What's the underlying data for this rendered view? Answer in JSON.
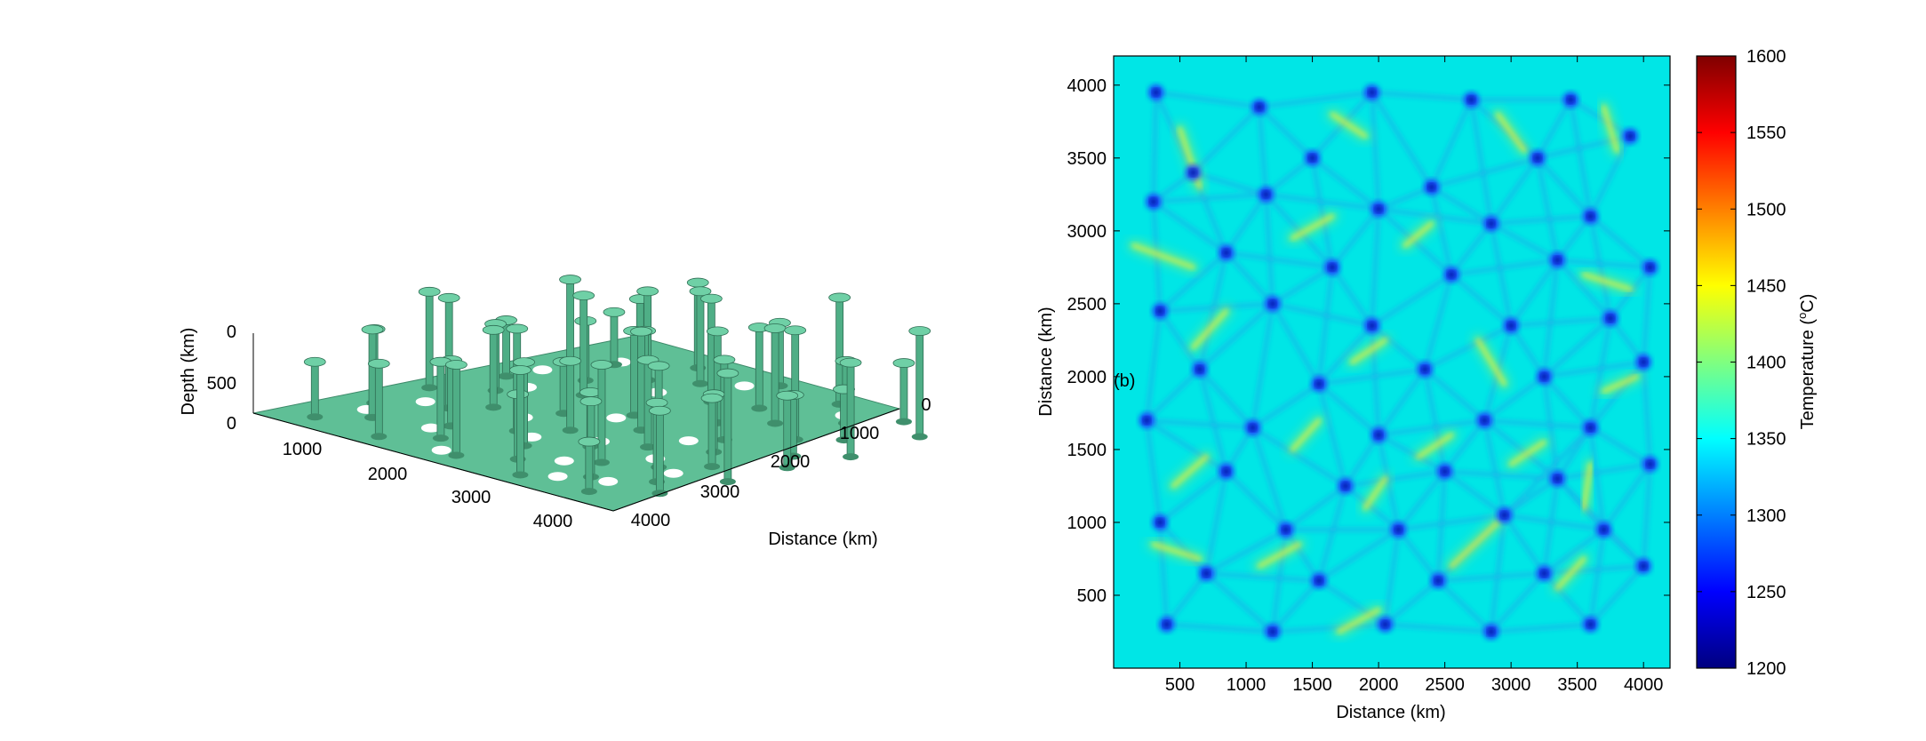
{
  "chart_data": [
    {
      "type": "surface3d",
      "panel": "",
      "xlabel": "Distance (km)",
      "ylabel": "",
      "zlabel": "Depth (km)",
      "x_ticks": [
        "0",
        "1000",
        "2000",
        "3000",
        "4000"
      ],
      "y_ticks": [
        "1000",
        "2000",
        "3000",
        "4000"
      ],
      "z_ticks": [
        "0",
        "500",
        "0"
      ],
      "xlim": [
        0,
        4200
      ],
      "ylim": [
        0,
        4200
      ],
      "zlim": [
        0,
        700
      ],
      "surface_color": "#5fbf96",
      "grid": false
    },
    {
      "type": "heatmap",
      "panel_label": "(b)",
      "xlabel": "Distance (km)",
      "ylabel": "Distance (km)",
      "x_ticks": [
        "500",
        "1000",
        "1500",
        "2000",
        "2500",
        "3000",
        "3500",
        "4000"
      ],
      "y_ticks": [
        "500",
        "1000",
        "1500",
        "2000",
        "2500",
        "3000",
        "3500",
        "4000"
      ],
      "xlim": [
        0,
        4200
      ],
      "ylim": [
        0,
        4200
      ],
      "background_temperature": 1350,
      "colorbar": {
        "label": "Temperature (°C)",
        "label_base": "Temperature (",
        "label_sup": "o",
        "label_unit": "C)",
        "min": 1200,
        "max": 1600,
        "ticks": [
          "1200",
          "1250",
          "1300",
          "1350",
          "1400",
          "1450",
          "1500",
          "1550",
          "1600"
        ],
        "colormap": "jet"
      },
      "cold_spots_km": [
        [
          320,
          3950
        ],
        [
          1100,
          3850
        ],
        [
          1950,
          3950
        ],
        [
          2700,
          3900
        ],
        [
          3450,
          3900
        ],
        [
          600,
          3400
        ],
        [
          1500,
          3500
        ],
        [
          2400,
          3300
        ],
        [
          3200,
          3500
        ],
        [
          3900,
          3650
        ],
        [
          300,
          3200
        ],
        [
          1150,
          3250
        ],
        [
          2000,
          3150
        ],
        [
          2850,
          3050
        ],
        [
          3600,
          3100
        ],
        [
          850,
          2850
        ],
        [
          1650,
          2750
        ],
        [
          2550,
          2700
        ],
        [
          3350,
          2800
        ],
        [
          4050,
          2750
        ],
        [
          350,
          2450
        ],
        [
          1200,
          2500
        ],
        [
          1950,
          2350
        ],
        [
          3000,
          2350
        ],
        [
          3750,
          2400
        ],
        [
          650,
          2050
        ],
        [
          1550,
          1950
        ],
        [
          2350,
          2050
        ],
        [
          3250,
          2000
        ],
        [
          4000,
          2100
        ],
        [
          250,
          1700
        ],
        [
          1050,
          1650
        ],
        [
          2000,
          1600
        ],
        [
          2800,
          1700
        ],
        [
          3600,
          1650
        ],
        [
          850,
          1350
        ],
        [
          1750,
          1250
        ],
        [
          2500,
          1350
        ],
        [
          3350,
          1300
        ],
        [
          4050,
          1400
        ],
        [
          350,
          1000
        ],
        [
          1300,
          950
        ],
        [
          2150,
          950
        ],
        [
          2950,
          1050
        ],
        [
          3700,
          950
        ],
        [
          700,
          650
        ],
        [
          1550,
          600
        ],
        [
          2450,
          600
        ],
        [
          3250,
          650
        ],
        [
          4000,
          700
        ],
        [
          400,
          300
        ],
        [
          1200,
          250
        ],
        [
          2050,
          300
        ],
        [
          2850,
          250
        ],
        [
          3600,
          300
        ]
      ],
      "warm_streaks_km": [
        [
          [
            500,
            3700
          ],
          [
            650,
            3300
          ]
        ],
        [
          [
            1650,
            3800
          ],
          [
            1900,
            3650
          ]
        ],
        [
          [
            2900,
            3800
          ],
          [
            3100,
            3550
          ]
        ],
        [
          [
            3700,
            3850
          ],
          [
            3800,
            3550
          ]
        ],
        [
          [
            150,
            2900
          ],
          [
            600,
            2750
          ]
        ],
        [
          [
            1350,
            2950
          ],
          [
            1650,
            3100
          ]
        ],
        [
          [
            2200,
            2900
          ],
          [
            2400,
            3050
          ]
        ],
        [
          [
            3550,
            2700
          ],
          [
            3900,
            2600
          ]
        ],
        [
          [
            600,
            2200
          ],
          [
            850,
            2450
          ]
        ],
        [
          [
            1800,
            2100
          ],
          [
            2050,
            2250
          ]
        ],
        [
          [
            2750,
            2250
          ],
          [
            2950,
            1950
          ]
        ],
        [
          [
            3700,
            1900
          ],
          [
            3950,
            2000
          ]
        ],
        [
          [
            1350,
            1500
          ],
          [
            1550,
            1700
          ]
        ],
        [
          [
            2300,
            1450
          ],
          [
            2550,
            1600
          ]
        ],
        [
          [
            3000,
            1400
          ],
          [
            3250,
            1550
          ]
        ],
        [
          [
            450,
            1250
          ],
          [
            700,
            1450
          ]
        ],
        [
          [
            1900,
            1100
          ],
          [
            2050,
            1300
          ]
        ],
        [
          [
            3550,
            1100
          ],
          [
            3600,
            1400
          ]
        ],
        [
          [
            300,
            850
          ],
          [
            650,
            750
          ]
        ],
        [
          [
            1100,
            700
          ],
          [
            1400,
            850
          ]
        ],
        [
          [
            2550,
            700
          ],
          [
            2900,
            1000
          ]
        ],
        [
          [
            3350,
            550
          ],
          [
            3550,
            750
          ]
        ],
        [
          [
            1700,
            250
          ],
          [
            2000,
            400
          ]
        ],
        [
          [
            2900,
            450
          ],
          [
            3250,
            450
          ]
        ]
      ]
    }
  ]
}
